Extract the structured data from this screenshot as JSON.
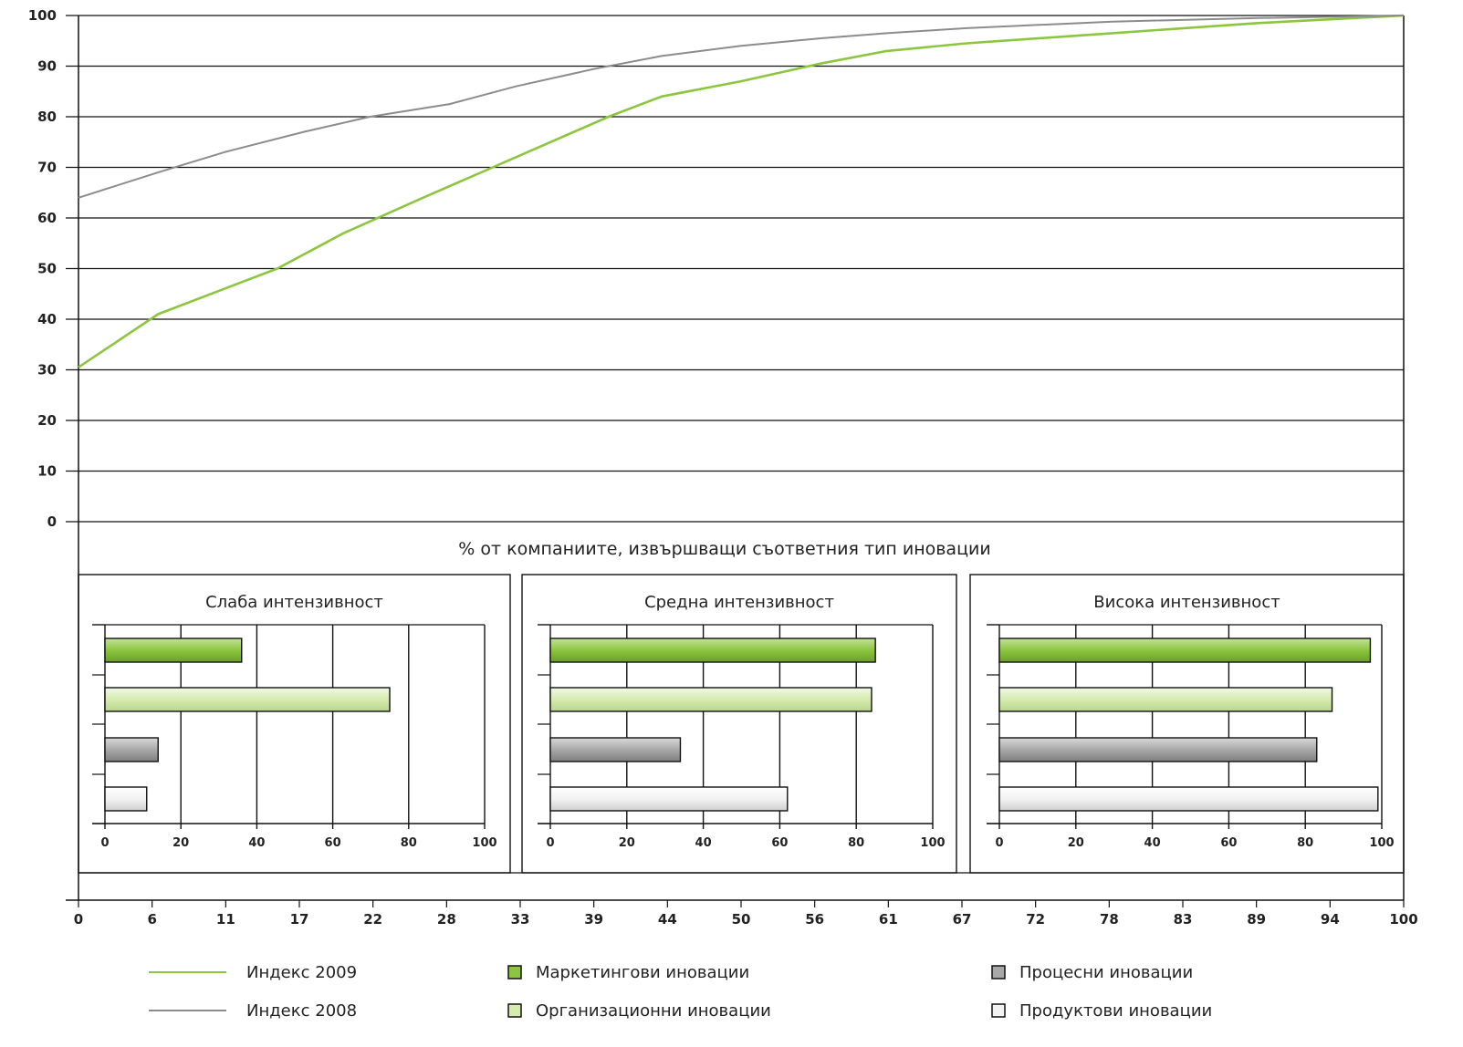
{
  "chart_data": {
    "type": "line",
    "y_ticks": [
      "100",
      "90",
      "80",
      "70",
      "60",
      "50",
      "40",
      "30",
      "20",
      "10",
      "0"
    ],
    "x_ticks": [
      "0",
      "6",
      "11",
      "17",
      "22",
      "28",
      "33",
      "39",
      "44",
      "50",
      "56",
      "61",
      "67",
      "72",
      "78",
      "83",
      "89",
      "94",
      "100"
    ],
    "ylim": [
      0,
      100
    ],
    "xlim": [
      0,
      100
    ],
    "grid": true,
    "series": [
      {
        "name": "Индекс 2009",
        "color": "#8cc63f",
        "x": [
          0,
          6,
          11,
          15,
          20,
          26,
          33,
          40,
          44,
          50,
          56,
          61,
          67,
          78,
          89,
          100
        ],
        "y": [
          30.5,
          41,
          46,
          50,
          57,
          64,
          72,
          80,
          84,
          87,
          90.5,
          93,
          94.5,
          96.5,
          98.5,
          100
        ]
      },
      {
        "name": "Индекс 2008",
        "color": "#8c8c8c",
        "x": [
          0,
          6,
          11,
          17,
          22,
          28,
          33,
          39,
          44,
          50,
          56,
          61,
          67,
          78,
          89,
          100
        ],
        "y": [
          64,
          69,
          73,
          77,
          80,
          82.5,
          86,
          89.5,
          92,
          94,
          95.5,
          96.5,
          97.5,
          98.8,
          99.5,
          100
        ]
      }
    ],
    "caption": "% от компаниите, извършващи съответния тип иновации",
    "bar_panels": {
      "type": "bar",
      "orientation": "horizontal",
      "xlim": [
        0,
        100
      ],
      "x_ticks": [
        "0",
        "20",
        "40",
        "60",
        "80",
        "100"
      ],
      "categories": [
        "Маркетингови иновации",
        "Организационни иновации",
        "Процесни иновации",
        "Продуктови иновации"
      ],
      "category_colors": [
        "#8cc63f",
        "#d6ebb0",
        "#a8a8a8",
        "#f2f2f2"
      ],
      "panels": [
        {
          "title": "Слаба интензивност",
          "values": [
            36,
            75,
            14,
            11
          ]
        },
        {
          "title": "Средна интензивност",
          "values": [
            85,
            84,
            34,
            62
          ]
        },
        {
          "title": "Висока интензивност",
          "values": [
            97,
            87,
            83,
            99
          ]
        }
      ]
    },
    "legend": {
      "placement": "bottom",
      "items": [
        {
          "label": "Индекс 2009",
          "kind": "line",
          "color": "#8cc63f"
        },
        {
          "label": "Маркетингови иновации",
          "kind": "box",
          "color": "#8cc63f"
        },
        {
          "label": "Процесни иновации",
          "kind": "box",
          "color": "#a8a8a8"
        },
        {
          "label": "Индекс 2008",
          "kind": "line",
          "color": "#8c8c8c"
        },
        {
          "label": "Организационни иновации",
          "kind": "box",
          "color": "#d6ebb0"
        },
        {
          "label": "Продуктови иновации",
          "kind": "box",
          "color": "#f2f2f2"
        }
      ]
    }
  }
}
